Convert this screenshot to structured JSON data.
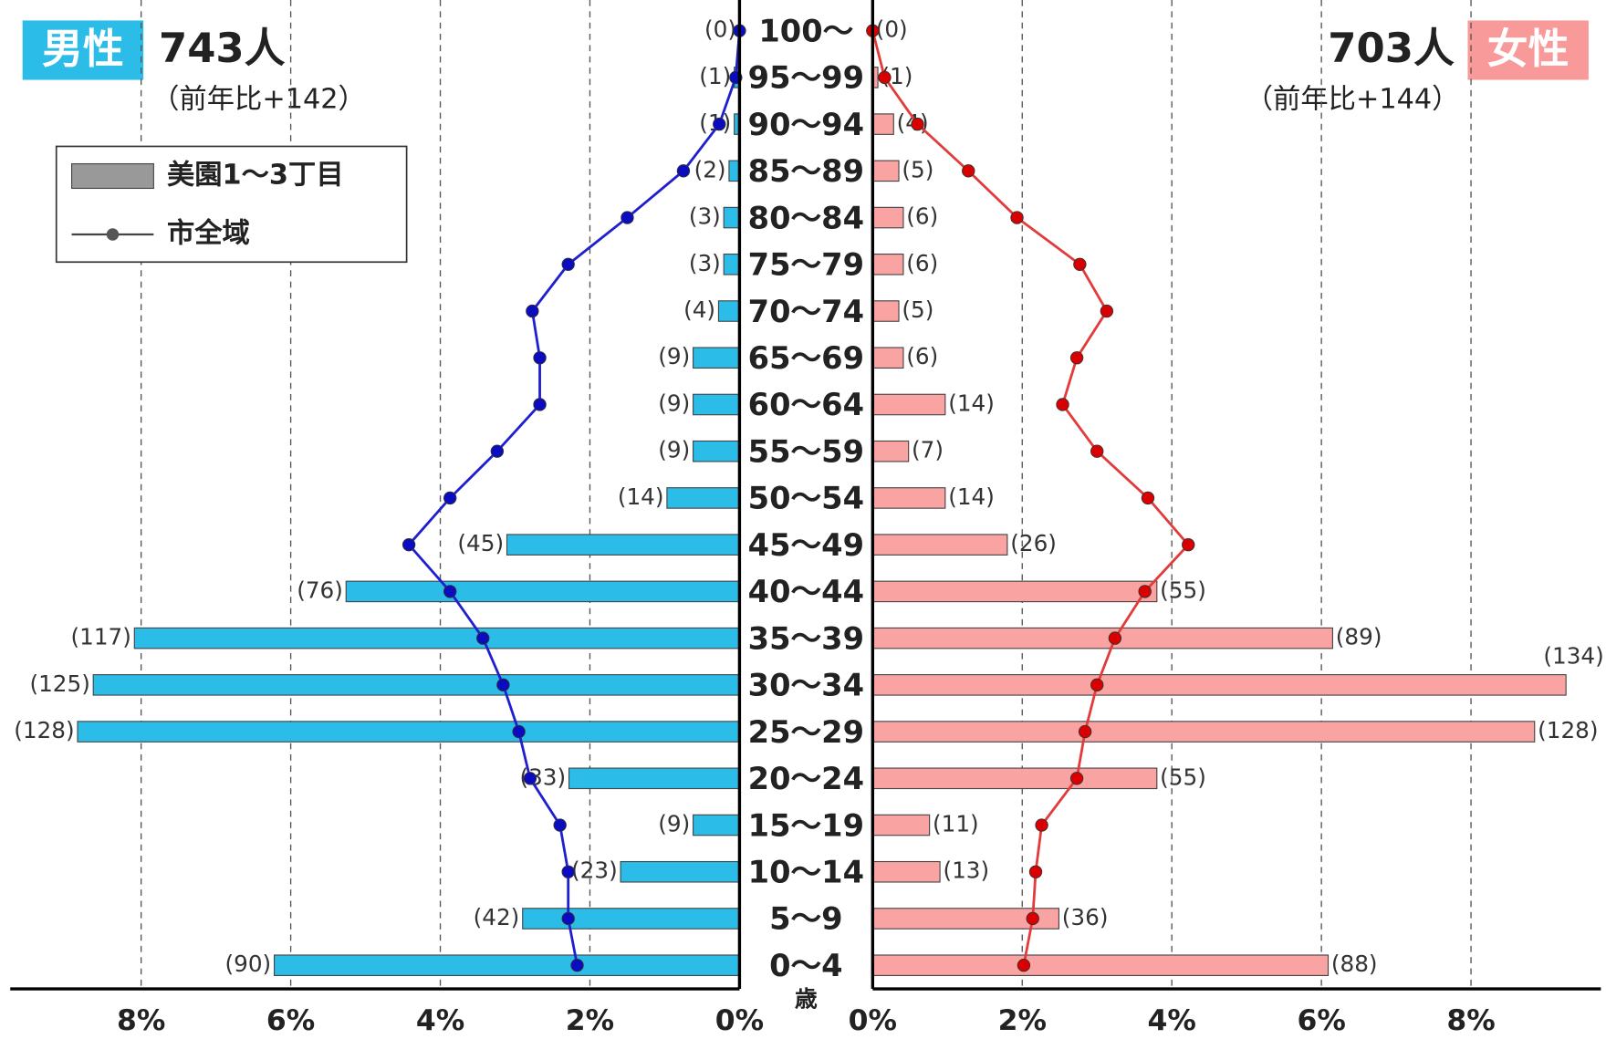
{
  "chart_data": {
    "type": "population_pyramid",
    "categories": [
      "100～",
      "95～99",
      "90～94",
      "85～89",
      "80～84",
      "75～79",
      "70～74",
      "65～69",
      "60～64",
      "55～59",
      "50～54",
      "45～49",
      "40～44",
      "35～39",
      "30～34",
      "25～29",
      "20～24",
      "15～19",
      "10～14",
      "5～9",
      "0～4"
    ],
    "age_unit": "歳",
    "xlim": [
      0,
      9.75
    ],
    "xticks": [
      {
        "value": 0,
        "label": "0%"
      },
      {
        "value": 2,
        "label": "2%"
      },
      {
        "value": 4,
        "label": "4%"
      },
      {
        "value": 6,
        "label": "6%"
      },
      {
        "value": 8,
        "label": "8%"
      }
    ],
    "grid": true,
    "legend": {
      "position": "upper-left",
      "bar": "美園1～3丁目",
      "line": "市全域"
    },
    "male": {
      "label": "男性",
      "total": "743人",
      "change": "（前年比+142）",
      "bar_color": "#2bbde8",
      "line_color": "#1f1fd0",
      "marker_color": "#0b0bbf",
      "bars": [
        0,
        0.07,
        0.07,
        0.14,
        0.21,
        0.21,
        0.28,
        0.62,
        0.62,
        0.62,
        0.97,
        3.11,
        5.26,
        8.09,
        8.64,
        8.85,
        2.28,
        0.62,
        1.59,
        2.9,
        6.22
      ],
      "count_labels": [
        "(0)",
        "(1)",
        "(1)",
        "(2)",
        "(3)",
        "(3)",
        "(4)",
        "(9)",
        "(9)",
        "(9)",
        "(14)",
        "(45)",
        "(76)",
        "(117)",
        "(125)",
        "(128)",
        "(33)",
        "(9)",
        "(23)",
        "(42)",
        "(90)"
      ],
      "line": [
        0,
        0.05,
        0.27,
        0.75,
        1.5,
        2.29,
        2.77,
        2.67,
        2.67,
        3.24,
        3.87,
        4.42,
        3.87,
        3.43,
        3.16,
        2.95,
        2.8,
        2.4,
        2.29,
        2.29,
        2.17
      ]
    },
    "female": {
      "label": "女性",
      "total": "703人",
      "change": "（前年比+144）",
      "bar_color": "#f9a3a3",
      "line_color": "#e23b3b",
      "marker_color": "#d80000",
      "bars": [
        0,
        0.07,
        0.28,
        0.35,
        0.41,
        0.41,
        0.35,
        0.41,
        0.97,
        0.48,
        0.97,
        1.8,
        3.8,
        6.15,
        9.27,
        8.85,
        3.8,
        0.76,
        0.9,
        2.49,
        6.09
      ],
      "count_labels": [
        "(0)",
        "(1)",
        "(4)",
        "(5)",
        "(6)",
        "(6)",
        "(5)",
        "(6)",
        "(14)",
        "(7)",
        "(14)",
        "(26)",
        "(55)",
        "(89)",
        "(134)",
        "(128)",
        "(55)",
        "(11)",
        "(13)",
        "(36)",
        "(88)"
      ],
      "line": [
        0,
        0.16,
        0.6,
        1.28,
        1.93,
        2.77,
        3.13,
        2.73,
        2.54,
        3.0,
        3.68,
        4.22,
        3.64,
        3.24,
        3.0,
        2.84,
        2.73,
        2.26,
        2.18,
        2.14,
        2.02
      ]
    }
  }
}
